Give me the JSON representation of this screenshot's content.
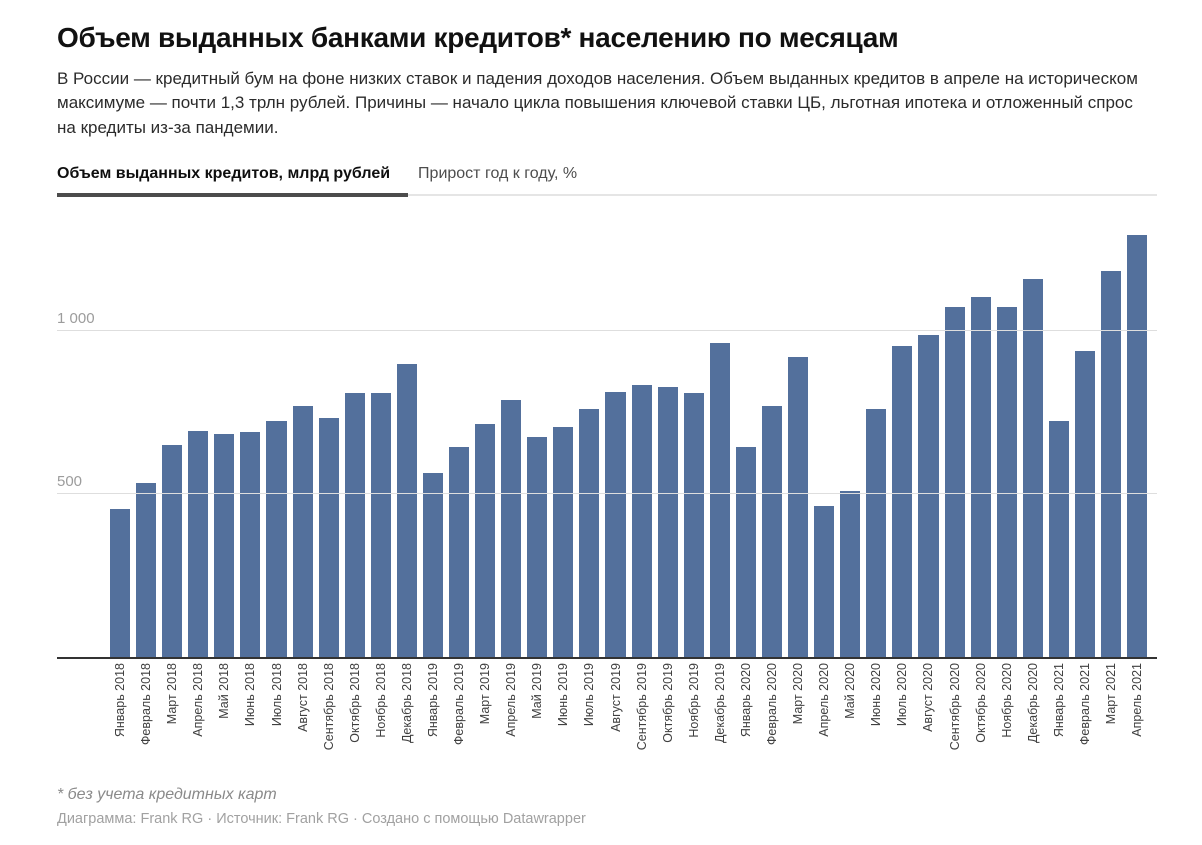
{
  "header": {
    "title": "Объем выданных банками кредитов* населению по месяцам",
    "subtitle": "В России — кредитный бум на фоне низких ставок и падения доходов населения. Объем выданных кредитов в апреле на историческом максимуме — почти 1,3 трлн рублей. Причины — начало цикла повышения ключевой ставки ЦБ, льготная ипотека и отложенный спрос на кредиты из-за пандемии."
  },
  "tabs": [
    {
      "label": "Объем выданных кредитов, млрд рублей",
      "active": true
    },
    {
      "label": "Прирост год к году, %",
      "active": false
    }
  ],
  "chart_data": {
    "type": "bar",
    "title": "Объем выданных банками кредитов* населению по месяцам",
    "ylabel": "млрд рублей",
    "xlabel": "",
    "grid": true,
    "legend": "none",
    "ylim": [
      0,
      1400
    ],
    "yticks": [
      {
        "value": 500,
        "label": "500"
      },
      {
        "value": 1000,
        "label": "1 000"
      }
    ],
    "bar_color": "#53709c",
    "categories": [
      "Январь 2018",
      "Февраль 2018",
      "Март 2018",
      "Апрель 2018",
      "Май 2018",
      "Июнь 2018",
      "Июль 2018",
      "Август 2018",
      "Сентябрь 2018",
      "Октябрь 2018",
      "Ноябрь 2018",
      "Декабрь 2018",
      "Январь 2019",
      "Февраль 2019",
      "Март 2019",
      "Апрель 2019",
      "Май 2019",
      "Июнь 2019",
      "Июль 2019",
      "Август 2019",
      "Сентябрь 2019",
      "Октябрь 2019",
      "Ноябрь 2019",
      "Декабрь 2019",
      "Январь 2020",
      "Февраль 2020",
      "Март 2020",
      "Апрель 2020",
      "Май 2020",
      "Июнь 2020",
      "Июль 2020",
      "Август 2020",
      "Сентябрь 2020",
      "Октябрь 2020",
      "Ноябрь 2020",
      "Декабрь 2020",
      "Январь 2021",
      "Февраль 2021",
      "Март 2021",
      "Апрель 2021"
    ],
    "values": [
      455,
      535,
      650,
      695,
      685,
      690,
      725,
      770,
      735,
      810,
      810,
      900,
      565,
      645,
      715,
      790,
      675,
      705,
      760,
      815,
      835,
      830,
      810,
      965,
      645,
      770,
      920,
      465,
      510,
      760,
      955,
      990,
      1075,
      1105,
      1075,
      1160,
      725,
      940,
      1185,
      1295
    ]
  },
  "footer": {
    "footnote": "* без учета кредитных карт",
    "byline": "Диаграмма: Frank RG · Источник: Frank RG · Создано с помощью Datawrapper"
  }
}
